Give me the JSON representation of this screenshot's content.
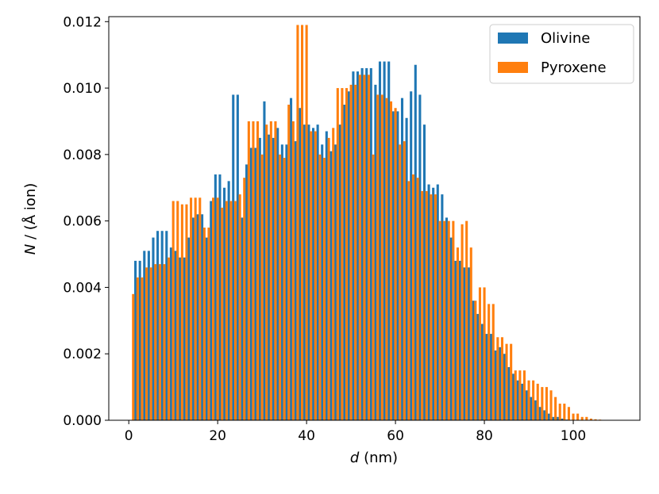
{
  "chart_data": {
    "type": "bar",
    "xlabel_symbol": "d",
    "xlabel_unit": " (nm)",
    "ylabel_symbol": "N",
    "ylabel_unit": " / (Å ion)",
    "xlim": [
      -4.5,
      115
    ],
    "ylim": [
      0,
      0.01215
    ],
    "xticks": [
      0,
      20,
      40,
      60,
      80,
      100
    ],
    "yticks": [
      "0.000",
      "0.002",
      "0.004",
      "0.006",
      "0.008",
      "0.010",
      "0.012"
    ],
    "legend_position": "top-right",
    "bar_width_nm": 0.55,
    "series": [
      {
        "name": "Olivine",
        "color": "#1f77b4",
        "x": [
          1.5,
          2.5,
          3.5,
          4.5,
          5.5,
          6.5,
          7.5,
          8.5,
          9.5,
          10.5,
          11.5,
          12.5,
          13.5,
          14.5,
          15.5,
          16.5,
          17.5,
          18.5,
          19.5,
          20.5,
          21.5,
          22.5,
          23.5,
          24.5,
          25.5,
          26.5,
          27.5,
          28.5,
          29.5,
          30.5,
          31.5,
          32.5,
          33.5,
          34.5,
          35.5,
          36.5,
          37.5,
          38.5,
          39.5,
          40.5,
          41.5,
          42.5,
          43.5,
          44.5,
          45.5,
          46.5,
          47.5,
          48.5,
          49.5,
          50.5,
          51.5,
          52.5,
          53.5,
          54.5,
          55.5,
          56.5,
          57.5,
          58.5,
          59.5,
          60.5,
          61.5,
          62.5,
          63.5,
          64.5,
          65.5,
          66.5,
          67.5,
          68.5,
          69.5,
          70.5,
          71.5,
          72.5,
          73.5,
          74.5,
          75.5,
          76.5,
          77.5,
          78.5,
          79.5,
          80.5,
          81.5,
          82.5,
          83.5,
          84.5,
          85.5,
          86.5,
          87.5,
          88.5,
          89.5,
          90.5,
          91.5,
          92.5,
          93.5,
          94.5,
          95.5,
          96.5,
          97.5,
          98.5,
          99.5,
          100.5,
          101.5,
          102.5,
          103.5,
          104.5,
          105.5,
          106.5,
          107.5,
          108.5
        ],
        "values": [
          0.0048,
          0.0048,
          0.0051,
          0.0051,
          0.0055,
          0.0057,
          0.0057,
          0.0057,
          0.0052,
          0.0051,
          0.0049,
          0.0049,
          0.0055,
          0.0061,
          0.0062,
          0.0062,
          0.0055,
          0.0066,
          0.0074,
          0.0074,
          0.007,
          0.0072,
          0.0098,
          0.0098,
          0.0061,
          0.0077,
          0.0082,
          0.0082,
          0.0085,
          0.0096,
          0.0086,
          0.0085,
          0.0088,
          0.0083,
          0.0083,
          0.0097,
          0.0084,
          0.0094,
          0.0089,
          0.0089,
          0.0088,
          0.0089,
          0.0083,
          0.0087,
          0.0081,
          0.0083,
          0.0089,
          0.0095,
          0.0099,
          0.0105,
          0.0105,
          0.0106,
          0.0106,
          0.0106,
          0.0101,
          0.0108,
          0.0108,
          0.0108,
          0.0093,
          0.0093,
          0.0097,
          0.0091,
          0.0099,
          0.0107,
          0.0098,
          0.0089,
          0.0071,
          0.007,
          0.0071,
          0.0068,
          0.0061,
          0.0055,
          0.0048,
          0.0048,
          0.0046,
          0.0046,
          0.0036,
          0.0032,
          0.0029,
          0.0026,
          0.0026,
          0.0021,
          0.0022,
          0.002,
          0.0016,
          0.0014,
          0.0012,
          0.0011,
          0.0009,
          0.0007,
          0.0006,
          0.0004,
          0.0003,
          0.0002,
          0.0001,
          0.0001,
          5e-05,
          2e-05,
          1e-05,
          5e-06,
          0.0,
          0.0,
          0.0,
          0.0,
          0.0,
          0.0,
          0.0,
          0.0
        ]
      },
      {
        "name": "Pyroxene",
        "color": "#ff7f0e",
        "x": [
          1.0,
          2.0,
          3.0,
          4.0,
          5.0,
          6.0,
          7.0,
          8.0,
          9.0,
          10.0,
          11.0,
          12.0,
          13.0,
          14.0,
          15.0,
          16.0,
          17.0,
          18.0,
          19.0,
          20.0,
          21.0,
          22.0,
          23.0,
          24.0,
          25.0,
          26.0,
          27.0,
          28.0,
          29.0,
          30.0,
          31.0,
          32.0,
          33.0,
          34.0,
          35.0,
          36.0,
          37.0,
          38.0,
          39.0,
          40.0,
          41.0,
          42.0,
          43.0,
          44.0,
          45.0,
          46.0,
          47.0,
          48.0,
          49.0,
          50.0,
          51.0,
          52.0,
          53.0,
          54.0,
          55.0,
          56.0,
          57.0,
          58.0,
          59.0,
          60.0,
          61.0,
          62.0,
          63.0,
          64.0,
          65.0,
          66.0,
          67.0,
          68.0,
          69.0,
          70.0,
          71.0,
          72.0,
          73.0,
          74.0,
          75.0,
          76.0,
          77.0,
          78.0,
          79.0,
          80.0,
          81.0,
          82.0,
          83.0,
          84.0,
          85.0,
          86.0,
          87.0,
          88.0,
          89.0,
          90.0,
          91.0,
          92.0,
          93.0,
          94.0,
          95.0,
          96.0,
          97.0,
          98.0,
          99.0,
          100.0,
          101.0,
          102.0,
          103.0,
          104.0,
          105.0,
          106.0,
          107.0,
          108.0,
          109.0
        ],
        "values": [
          0.0038,
          0.0043,
          0.0043,
          0.0046,
          0.0046,
          0.0047,
          0.0047,
          0.0047,
          0.0049,
          0.0066,
          0.0066,
          0.0065,
          0.0065,
          0.0067,
          0.0067,
          0.0067,
          0.0058,
          0.0058,
          0.0067,
          0.0067,
          0.0064,
          0.0066,
          0.0066,
          0.0066,
          0.0068,
          0.0073,
          0.009,
          0.009,
          0.009,
          0.008,
          0.0089,
          0.009,
          0.009,
          0.008,
          0.0079,
          0.0095,
          0.009,
          0.0119,
          0.0119,
          0.0119,
          0.0087,
          0.0087,
          0.008,
          0.0079,
          0.0085,
          0.0088,
          0.01,
          0.01,
          0.01,
          0.0101,
          0.0101,
          0.0104,
          0.0104,
          0.0104,
          0.008,
          0.0098,
          0.0098,
          0.0097,
          0.0096,
          0.0094,
          0.0083,
          0.0084,
          0.0072,
          0.0074,
          0.0073,
          0.0069,
          0.0069,
          0.0068,
          0.0068,
          0.006,
          0.006,
          0.006,
          0.006,
          0.0052,
          0.0059,
          0.006,
          0.0052,
          0.0036,
          0.004,
          0.004,
          0.0035,
          0.0035,
          0.0025,
          0.0025,
          0.0023,
          0.0023,
          0.0015,
          0.0015,
          0.0015,
          0.0012,
          0.0012,
          0.0011,
          0.001,
          0.001,
          0.0009,
          0.0007,
          0.0005,
          0.0005,
          0.0004,
          0.0002,
          0.0002,
          0.0001,
          0.0001,
          5e-05,
          3e-05,
          2e-05,
          1e-05,
          1e-05,
          5e-06
        ]
      }
    ]
  }
}
